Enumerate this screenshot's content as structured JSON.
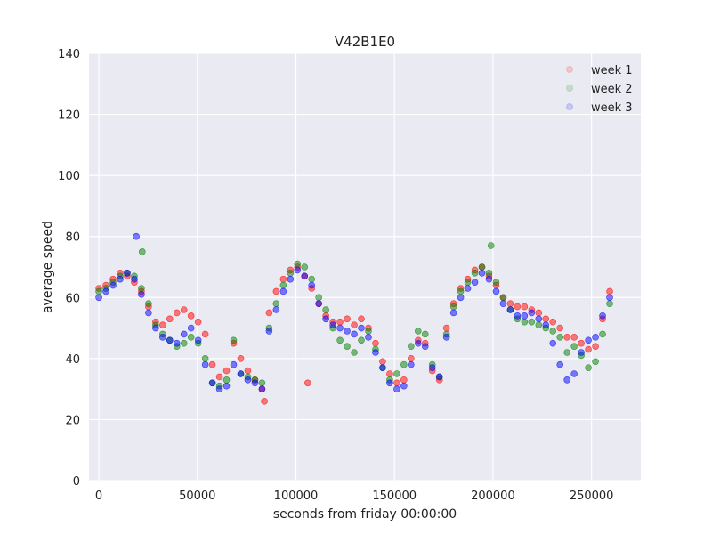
{
  "chart_data": {
    "type": "scatter",
    "title": "V42B1E0",
    "xlabel": "seconds from friday 00:00:00",
    "ylabel": "average speed",
    "xlim": [
      -5000,
      275000
    ],
    "ylim": [
      0,
      140
    ],
    "xticks": [
      0,
      50000,
      100000,
      150000,
      200000,
      250000
    ],
    "yticks": [
      0,
      20,
      40,
      60,
      80,
      100,
      120,
      140
    ],
    "xtick_labels": [
      "0",
      "50000",
      "100000",
      "150000",
      "200000",
      "250000"
    ],
    "ytick_labels": [
      "0",
      "20",
      "40",
      "60",
      "80",
      "100",
      "120",
      "140"
    ],
    "grid": true,
    "legend_position": "top-right",
    "background": "#eaeaf2",
    "series": [
      {
        "name": "week 1",
        "color": "#ff0000",
        "x": [
          0,
          3600,
          7200,
          10800,
          14400,
          18000,
          21600,
          25200,
          28800,
          32400,
          36000,
          39600,
          43200,
          46800,
          50400,
          54000,
          57600,
          61200,
          64800,
          68400,
          72000,
          75600,
          79200,
          82800,
          86400,
          90000,
          93600,
          97200,
          100800,
          104400,
          108000,
          111600,
          115200,
          118800,
          122400,
          126000,
          129600,
          133200,
          136800,
          140400,
          144000,
          147600,
          151200,
          154800,
          158400,
          162000,
          165600,
          169200,
          172800,
          176400,
          180000,
          183600,
          187200,
          190800,
          194400,
          198000,
          201600,
          205200,
          208800,
          212400,
          216000,
          219600,
          223200,
          226800,
          230400,
          234000,
          237600,
          241200,
          244800,
          248400,
          252000,
          255600,
          259200,
          106000,
          84000
        ],
        "y": [
          63,
          64,
          66,
          68,
          67,
          65,
          62,
          57,
          52,
          51,
          53,
          55,
          56,
          54,
          52,
          48,
          38,
          34,
          36,
          45,
          40,
          36,
          33,
          30,
          55,
          62,
          66,
          69,
          70,
          67,
          63,
          58,
          54,
          52,
          52,
          53,
          51,
          53,
          50,
          45,
          39,
          35,
          32,
          33,
          40,
          46,
          45,
          36,
          33,
          50,
          58,
          63,
          66,
          69,
          70,
          67,
          64,
          60,
          58,
          57,
          57,
          56,
          55,
          53,
          52,
          50,
          47,
          47,
          45,
          43,
          44,
          53,
          62,
          32,
          26
        ]
      },
      {
        "name": "week 2",
        "color": "#008000",
        "x": [
          0,
          3600,
          7200,
          10800,
          14400,
          18000,
          21600,
          25200,
          28800,
          32400,
          36000,
          39600,
          43200,
          46800,
          50400,
          54000,
          57600,
          61200,
          64800,
          68400,
          72000,
          75600,
          79200,
          82800,
          86400,
          90000,
          93600,
          97200,
          100800,
          104400,
          108000,
          111600,
          115200,
          118800,
          122400,
          126000,
          129600,
          133200,
          136800,
          140400,
          144000,
          147600,
          151200,
          154800,
          158400,
          162000,
          165600,
          169200,
          172800,
          176400,
          180000,
          183600,
          187200,
          190800,
          194400,
          198000,
          201600,
          205200,
          208800,
          212400,
          216000,
          219600,
          223200,
          226800,
          230400,
          234000,
          237600,
          241200,
          244800,
          248400,
          252000,
          255600,
          259200,
          199000,
          22000
        ],
        "y": [
          62,
          63,
          65,
          67,
          68,
          67,
          63,
          58,
          51,
          48,
          46,
          44,
          45,
          47,
          45,
          40,
          32,
          31,
          33,
          46,
          35,
          34,
          33,
          32,
          50,
          58,
          64,
          68,
          71,
          70,
          66,
          60,
          56,
          50,
          46,
          44,
          42,
          46,
          49,
          43,
          37,
          33,
          35,
          38,
          44,
          49,
          48,
          38,
          34,
          48,
          57,
          62,
          65,
          68,
          70,
          68,
          65,
          60,
          56,
          53,
          52,
          52,
          51,
          50,
          49,
          47,
          42,
          44,
          41,
          37,
          39,
          48,
          58,
          77,
          75
        ]
      },
      {
        "name": "week 3",
        "color": "#0000ff",
        "x": [
          0,
          3600,
          7200,
          10800,
          14400,
          18000,
          21600,
          25200,
          28800,
          32400,
          36000,
          39600,
          43200,
          46800,
          50400,
          54000,
          57600,
          61200,
          64800,
          68400,
          72000,
          75600,
          79200,
          82800,
          86400,
          90000,
          93600,
          97200,
          100800,
          104400,
          108000,
          111600,
          115200,
          118800,
          122400,
          126000,
          129600,
          133200,
          136800,
          140400,
          144000,
          147600,
          151200,
          154800,
          158400,
          162000,
          165600,
          169200,
          172800,
          176400,
          180000,
          183600,
          187200,
          190800,
          194400,
          198000,
          201600,
          205200,
          208800,
          212400,
          216000,
          219600,
          223200,
          226800,
          230400,
          234000,
          237600,
          241200,
          244800,
          248400,
          252000,
          255600,
          259200,
          19000
        ],
        "y": [
          60,
          62,
          64,
          66,
          68,
          66,
          61,
          55,
          50,
          47,
          46,
          45,
          48,
          50,
          46,
          38,
          32,
          30,
          31,
          38,
          35,
          33,
          32,
          30,
          49,
          56,
          62,
          66,
          69,
          67,
          64,
          58,
          53,
          51,
          50,
          49,
          48,
          50,
          47,
          42,
          37,
          32,
          30,
          31,
          38,
          45,
          44,
          37,
          34,
          47,
          55,
          60,
          63,
          65,
          68,
          66,
          62,
          58,
          56,
          54,
          54,
          55,
          53,
          51,
          45,
          38,
          33,
          35,
          42,
          46,
          47,
          54,
          60,
          80
        ]
      }
    ]
  }
}
